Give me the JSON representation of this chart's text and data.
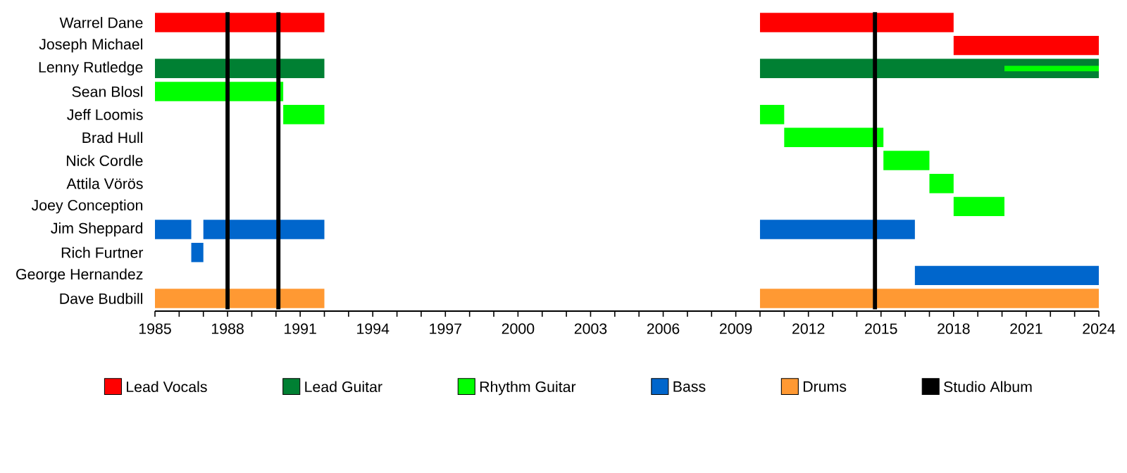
{
  "chart_data": {
    "type": "bar",
    "orientation": "horizontal",
    "categories": [
      "Warrel Dane",
      "Joseph Michael",
      "Lenny Rutledge",
      "Sean Blosl",
      "Jeff Loomis",
      "Brad Hull",
      "Nick Cordle",
      "Attila Vörös",
      "Joey Conception",
      "Jim Sheppard",
      "Rich Furtner",
      "George Hernandez",
      "Dave Budbill"
    ],
    "series": [
      {
        "name": "Lead Vocals",
        "color": "#ff0000",
        "base": [
          1985,
          2018,
          null,
          null,
          null,
          null,
          null,
          null,
          null,
          null,
          null,
          null,
          null
        ],
        "values": [
          7,
          6,
          null,
          null,
          null,
          null,
          null,
          null,
          null,
          null,
          null,
          null,
          null
        ]
      },
      {
        "color": "#ff0000",
        "base": [
          2010,
          null,
          null,
          null,
          null,
          null,
          null,
          null,
          null,
          null,
          null,
          null,
          null
        ],
        "values": [
          8,
          null,
          null,
          null,
          null,
          null,
          null,
          null,
          null,
          null,
          null,
          null,
          null
        ]
      },
      {
        "name": "Lead Guitar",
        "color": "#008033",
        "base": [
          null,
          null,
          1985,
          null,
          null,
          null,
          null,
          null,
          null,
          null,
          null,
          null,
          null
        ],
        "values": [
          null,
          null,
          7,
          null,
          null,
          null,
          null,
          null,
          null,
          null,
          null,
          null,
          null
        ]
      },
      {
        "color": "#008033",
        "base": [
          null,
          null,
          2010,
          null,
          null,
          null,
          null,
          null,
          null,
          null,
          null,
          null,
          null
        ],
        "values": [
          null,
          null,
          14,
          null,
          null,
          null,
          null,
          null,
          null,
          null,
          null,
          null,
          null
        ]
      },
      {
        "name": "Rhythm Guitar",
        "color": "#00ff00",
        "base": [
          null,
          null,
          2020.1,
          1985,
          1990.3,
          2011,
          2015.1,
          2017,
          2018,
          null,
          null,
          null,
          null
        ],
        "values": [
          null,
          null,
          3.9,
          5.3,
          1.7,
          4.1,
          1.9,
          1,
          2.1,
          null,
          null,
          null,
          null
        ]
      },
      {
        "color": "#00ff00",
        "base": [
          null,
          null,
          null,
          null,
          2010,
          null,
          null,
          null,
          null,
          null,
          null,
          null,
          null
        ],
        "values": [
          null,
          null,
          null,
          null,
          1,
          null,
          null,
          null,
          null,
          null,
          null,
          null,
          null
        ]
      },
      {
        "name": "Bass",
        "color": "#0066cc",
        "base": [
          null,
          null,
          null,
          null,
          null,
          null,
          null,
          null,
          null,
          1985,
          1986.5,
          2016.4,
          null
        ],
        "values": [
          null,
          null,
          null,
          null,
          null,
          null,
          null,
          null,
          null,
          1.5,
          0.5,
          7.6,
          null
        ]
      },
      {
        "color": "#0066cc",
        "base": [
          null,
          null,
          null,
          null,
          null,
          null,
          null,
          null,
          null,
          1987,
          null,
          null,
          null
        ],
        "values": [
          null,
          null,
          null,
          null,
          null,
          null,
          null,
          null,
          null,
          5,
          null,
          null,
          null
        ]
      },
      {
        "color": "#0066cc",
        "base": [
          null,
          null,
          null,
          null,
          null,
          null,
          null,
          null,
          null,
          2010,
          null,
          null,
          null
        ],
        "values": [
          null,
          null,
          null,
          null,
          null,
          null,
          null,
          null,
          null,
          6.4,
          null,
          null,
          null
        ]
      },
      {
        "name": "Drums",
        "color": "#ff9933",
        "base": [
          null,
          null,
          null,
          null,
          null,
          null,
          null,
          null,
          null,
          null,
          null,
          null,
          1985
        ],
        "values": [
          null,
          null,
          null,
          null,
          null,
          null,
          null,
          null,
          null,
          null,
          null,
          null,
          7
        ]
      },
      {
        "color": "#ff9933",
        "base": [
          null,
          null,
          null,
          null,
          null,
          null,
          null,
          null,
          null,
          null,
          null,
          null,
          2010
        ],
        "values": [
          null,
          null,
          null,
          null,
          null,
          null,
          null,
          null,
          null,
          null,
          null,
          null,
          14
        ]
      }
    ],
    "ref_lines": [
      {
        "axis": "x",
        "value": 1988,
        "label": "Studio Album",
        "color": "#000000"
      },
      {
        "axis": "x",
        "value": 1990.1,
        "color": "#000000"
      },
      {
        "axis": "x",
        "value": 2014.75,
        "color": "#000000"
      }
    ],
    "xlim": [
      1985,
      2024
    ],
    "xticks": [
      1985,
      {
        "value": 1986,
        "label": null
      },
      {
        "value": 1987,
        "label": null
      },
      1988,
      {
        "value": 1989,
        "label": null
      },
      {
        "value": 1990,
        "label": null
      },
      1991,
      {
        "value": 1992,
        "label": null
      },
      {
        "value": 1993,
        "label": null
      },
      1994,
      {
        "value": 1995,
        "label": null
      },
      {
        "value": 1996,
        "label": null
      },
      1997,
      {
        "value": 1998,
        "label": null
      },
      {
        "value": 1999,
        "label": null
      },
      2000,
      {
        "value": 2001,
        "label": null
      },
      {
        "value": 2002,
        "label": null
      },
      2003,
      {
        "value": 2004,
        "label": null
      },
      {
        "value": 2005,
        "label": null
      },
      2006,
      {
        "value": 2007,
        "label": null
      },
      {
        "value": 2008,
        "label": null
      },
      2009,
      {
        "value": 2010,
        "label": null
      },
      {
        "value": 2011,
        "label": null
      },
      2012,
      {
        "value": 2013,
        "label": null
      },
      {
        "value": 2014,
        "label": null
      },
      2015,
      {
        "value": 2016,
        "label": null
      },
      {
        "value": 2017,
        "label": null
      },
      2018,
      {
        "value": 2019,
        "label": null
      },
      {
        "value": 2020,
        "label": null
      },
      2021,
      {
        "value": 2022,
        "label": null
      },
      {
        "value": 2023,
        "label": null
      },
      2024
    ],
    "legend": "bottom"
  }
}
